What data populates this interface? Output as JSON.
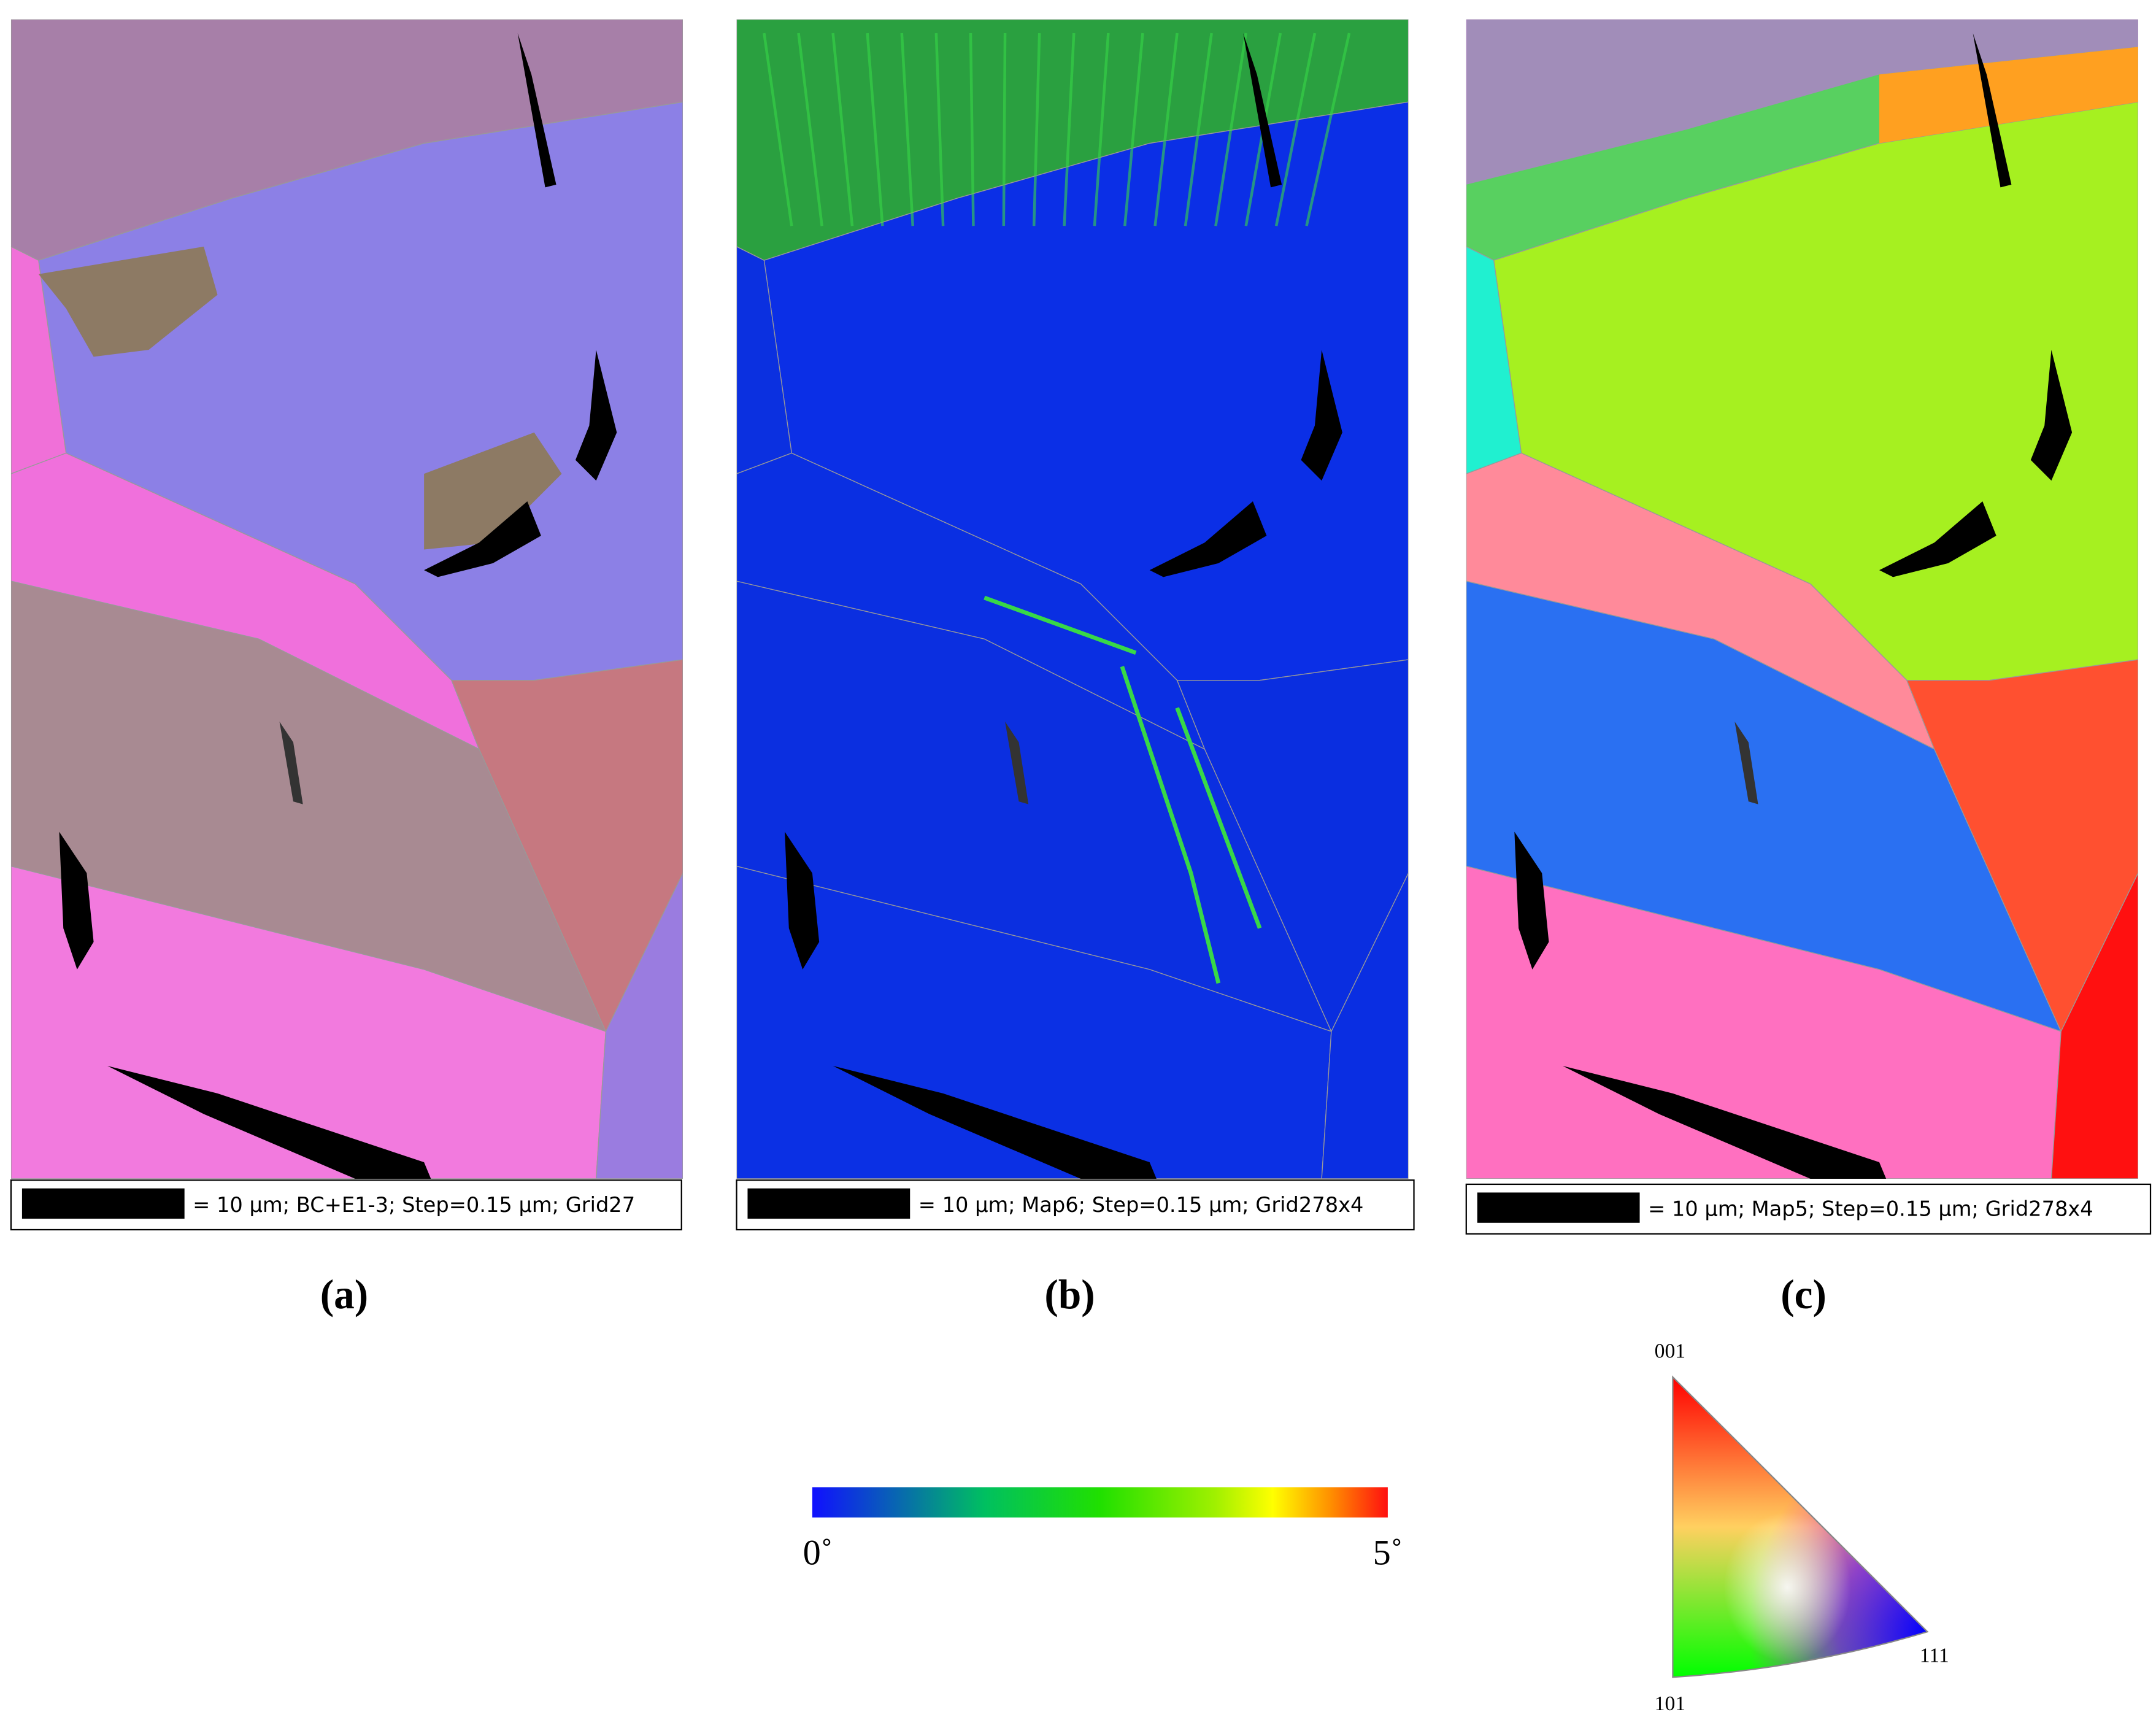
{
  "panels": [
    {
      "label": "(a)",
      "scale_text": "= 10 µm; BC+E1-3; Step=0.15 µm; Grid27"
    },
    {
      "label": "(b)",
      "scale_text": "= 10 µm; Map6; Step=0.15 µm; Grid278x4"
    },
    {
      "label": "(c)",
      "scale_text": "= 10 µm; Map5; Step=0.15 µm; Grid278x4"
    }
  ],
  "colorbar": {
    "min_label": "0˚",
    "max_label": "5˚"
  },
  "ipf_key": {
    "corners": [
      "001",
      "101",
      "111"
    ]
  }
}
